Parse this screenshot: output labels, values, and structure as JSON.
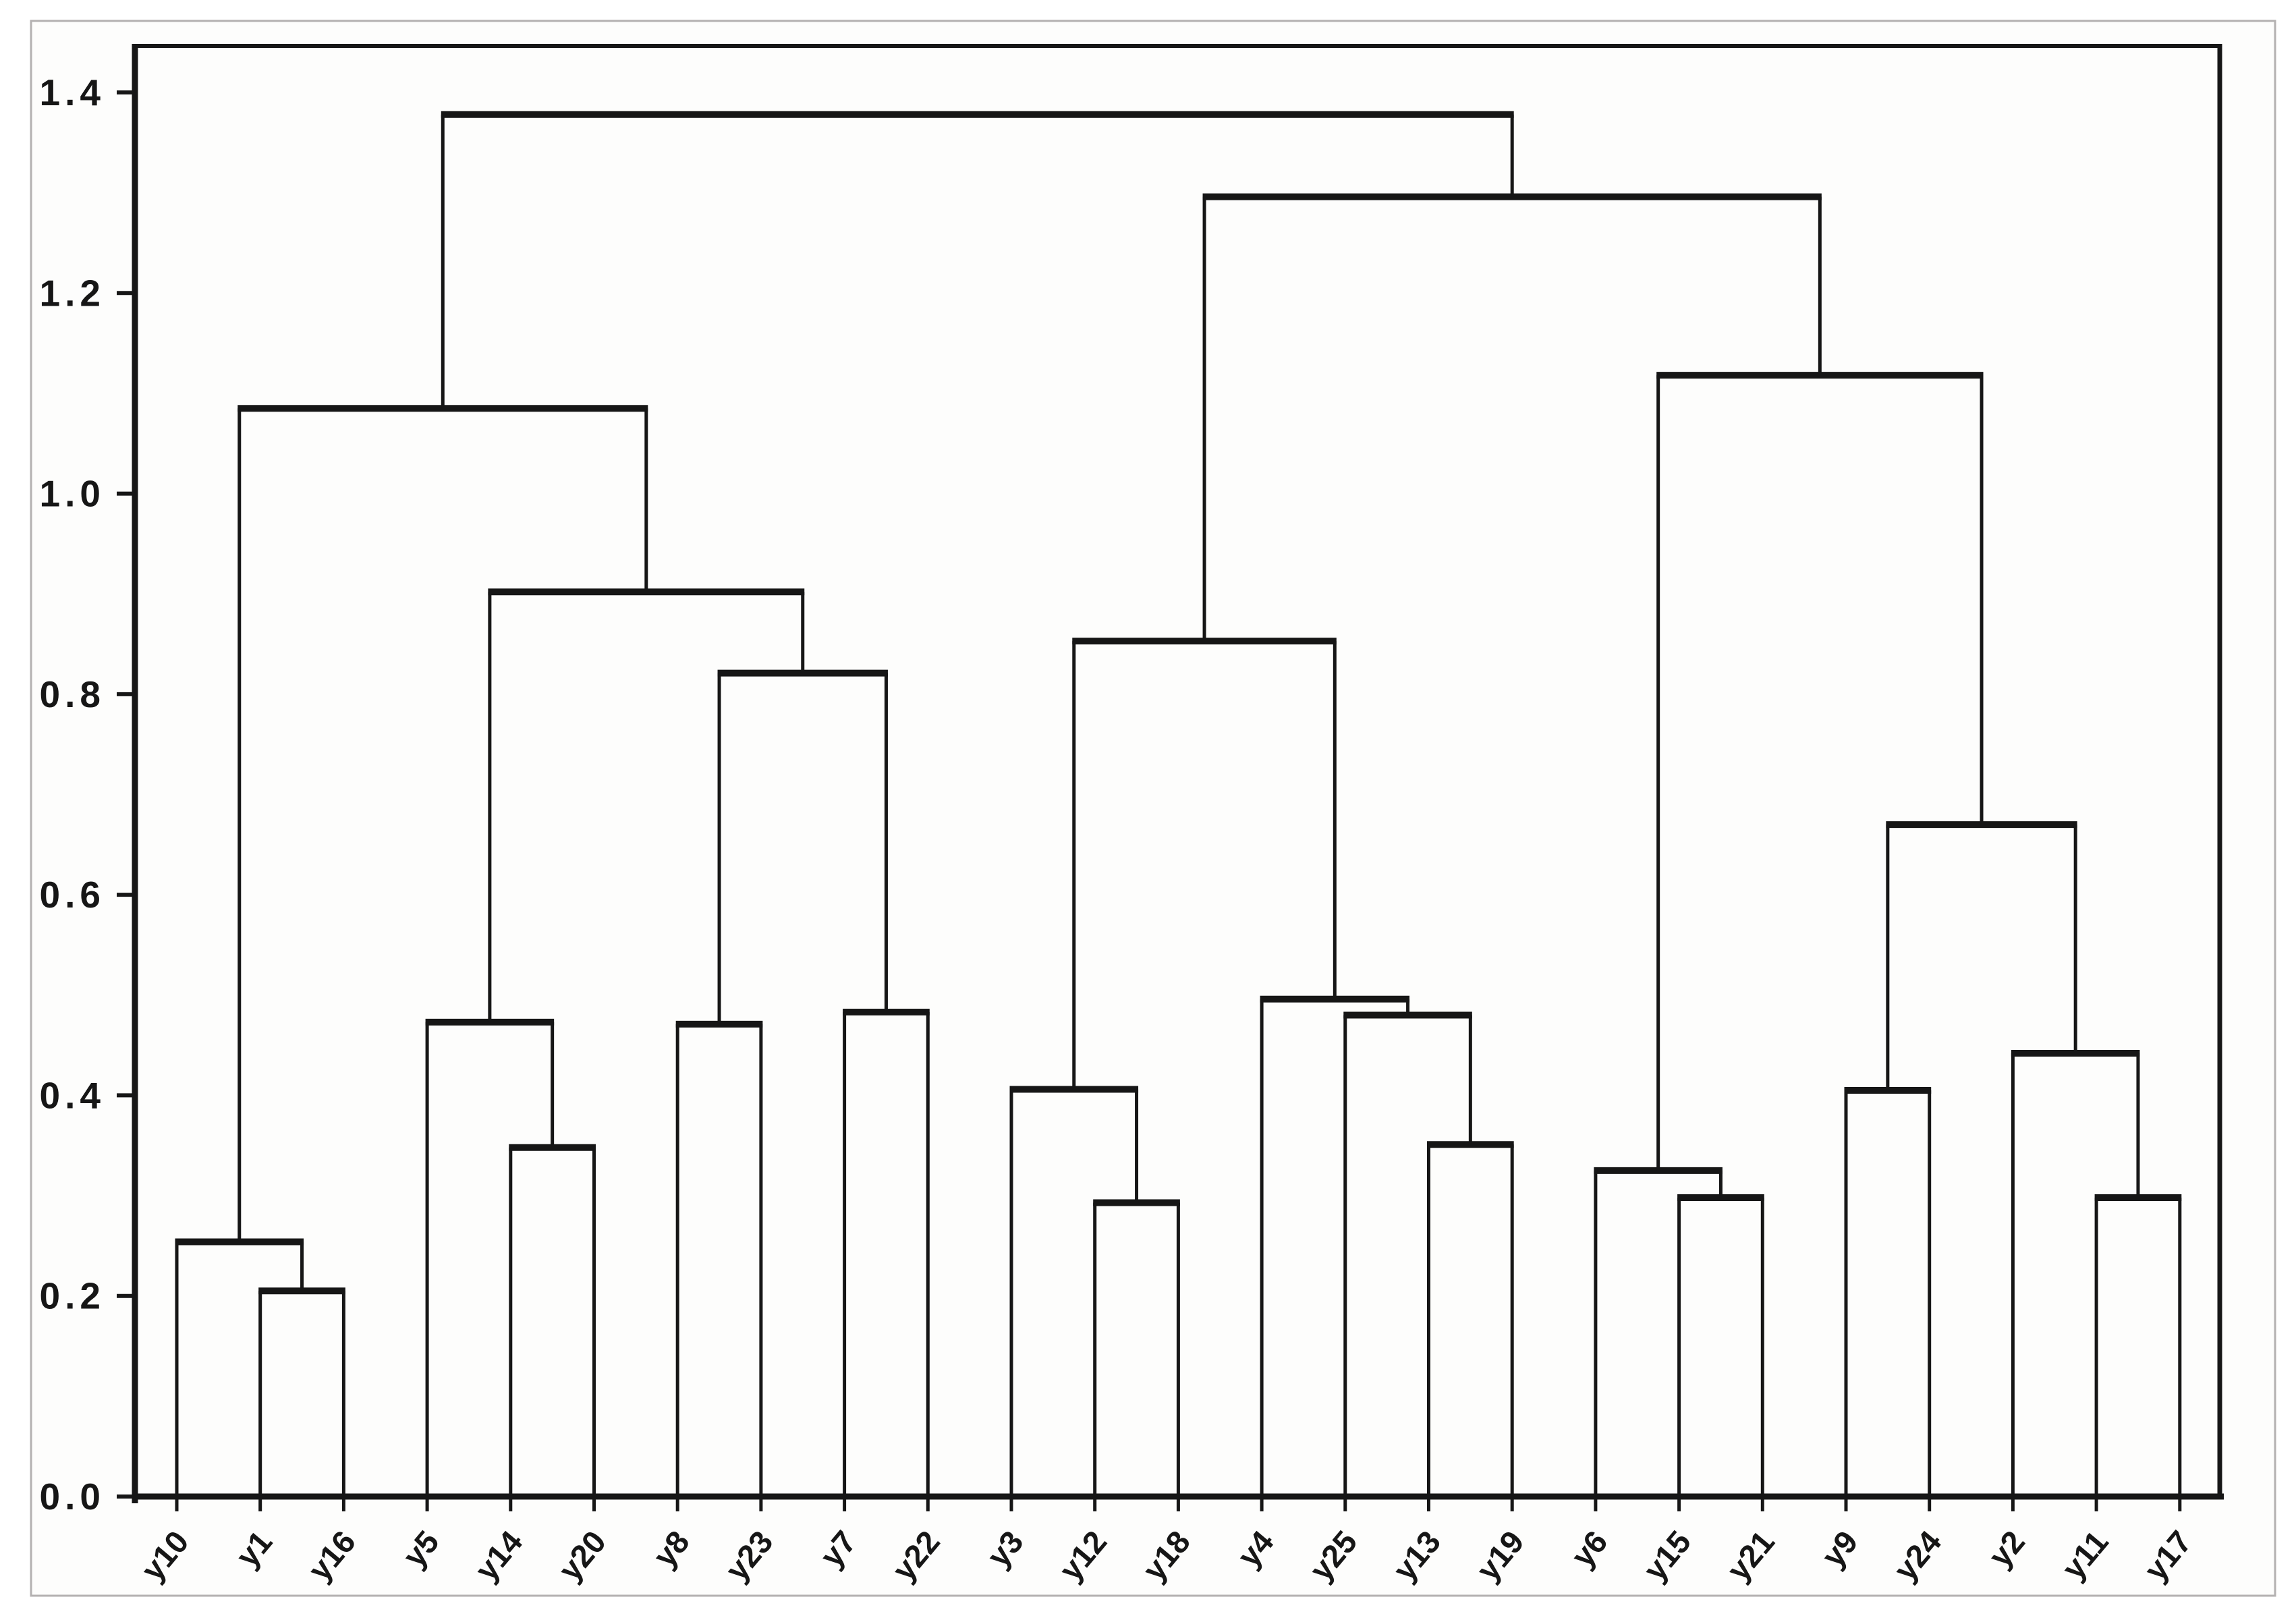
{
  "page": {
    "background": "#ffffff",
    "frame_color": "#b4b1b1",
    "plot_background": "#fdfdfc"
  },
  "chart_data": {
    "type": "dendrogram",
    "title": "",
    "xlabel": "",
    "ylabel": "",
    "orientation": "top",
    "grid": false,
    "legend": false,
    "line_color": "#161616",
    "ylim": [
      0.0,
      1.4
    ],
    "y_ticks": [
      "0.0",
      "0.2",
      "0.4",
      "0.6",
      "0.8",
      "1.0",
      "1.2",
      "1.4"
    ],
    "leaves": [
      "y10",
      "y1",
      "y16",
      "y5",
      "y14",
      "y20",
      "y8",
      "y23",
      "y7",
      "y22",
      "y3",
      "y12",
      "y18",
      "y4",
      "y25",
      "y13",
      "y19",
      "y6",
      "y15",
      "y21",
      "y9",
      "y24",
      "y2",
      "y11",
      "y17"
    ],
    "merges": [
      {
        "id": "m1",
        "a": "y1",
        "b": "y16",
        "height": 0.205
      },
      {
        "id": "m2",
        "a": "y10",
        "b": "m1",
        "height": 0.254
      },
      {
        "id": "m3",
        "a": "y14",
        "b": "y20",
        "height": 0.348
      },
      {
        "id": "m4",
        "a": "y5",
        "b": "m3",
        "height": 0.473
      },
      {
        "id": "m5",
        "a": "y8",
        "b": "y23",
        "height": 0.471
      },
      {
        "id": "m6",
        "a": "y7",
        "b": "y22",
        "height": 0.483
      },
      {
        "id": "m7",
        "a": "m5",
        "b": "m6",
        "height": 0.821
      },
      {
        "id": "m8",
        "a": "m4",
        "b": "m7",
        "height": 0.902
      },
      {
        "id": "m9",
        "a": "m2",
        "b": "m8",
        "height": 1.085
      },
      {
        "id": "m10",
        "a": "y12",
        "b": "y18",
        "height": 0.293
      },
      {
        "id": "m11",
        "a": "y3",
        "b": "m10",
        "height": 0.406
      },
      {
        "id": "m12",
        "a": "y13",
        "b": "y19",
        "height": 0.351
      },
      {
        "id": "m13",
        "a": "y25",
        "b": "m12",
        "height": 0.48
      },
      {
        "id": "m14",
        "a": "y4",
        "b": "m13",
        "height": 0.496
      },
      {
        "id": "m15",
        "a": "m11",
        "b": "m14",
        "height": 0.853
      },
      {
        "id": "m16",
        "a": "y15",
        "b": "y21",
        "height": 0.298
      },
      {
        "id": "m17",
        "a": "y6",
        "b": "m16",
        "height": 0.325
      },
      {
        "id": "m18",
        "a": "y9",
        "b": "y24",
        "height": 0.405
      },
      {
        "id": "m19",
        "a": "y11",
        "b": "y17",
        "height": 0.298
      },
      {
        "id": "m20",
        "a": "y2",
        "b": "m19",
        "height": 0.442
      },
      {
        "id": "m21",
        "a": "m18",
        "b": "m20",
        "height": 0.67
      },
      {
        "id": "m22",
        "a": "m17",
        "b": "m21",
        "height": 1.118
      },
      {
        "id": "m23",
        "a": "m15",
        "b": "m22",
        "height": 1.296
      },
      {
        "id": "m24",
        "a": "m9",
        "b": "m23",
        "height": 1.378
      }
    ]
  }
}
